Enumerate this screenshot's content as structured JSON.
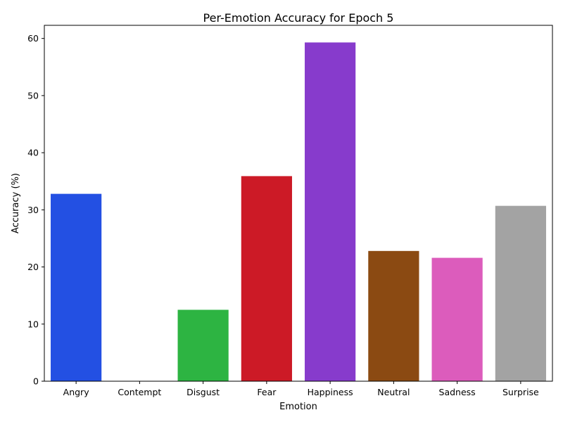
{
  "chart_data": {
    "type": "bar",
    "title": "Per-Emotion Accuracy for Epoch 5",
    "xlabel": "Emotion",
    "ylabel": "Accuracy (%)",
    "categories": [
      "Angry",
      "Contempt",
      "Disgust",
      "Fear",
      "Happiness",
      "Neutral",
      "Sadness",
      "Surprise"
    ],
    "values": [
      32.8,
      0.0,
      12.5,
      35.9,
      59.3,
      22.8,
      21.6,
      30.7
    ],
    "colors": [
      "#2350e3",
      "#f07a1a",
      "#2db442",
      "#cc1a26",
      "#873bcc",
      "#8b4a12",
      "#dc5cbc",
      "#a3a3a3"
    ],
    "ylim": [
      0,
      62.3
    ],
    "yticks": [
      0,
      10,
      20,
      30,
      40,
      50,
      60
    ],
    "grid": false,
    "legend": "none"
  }
}
